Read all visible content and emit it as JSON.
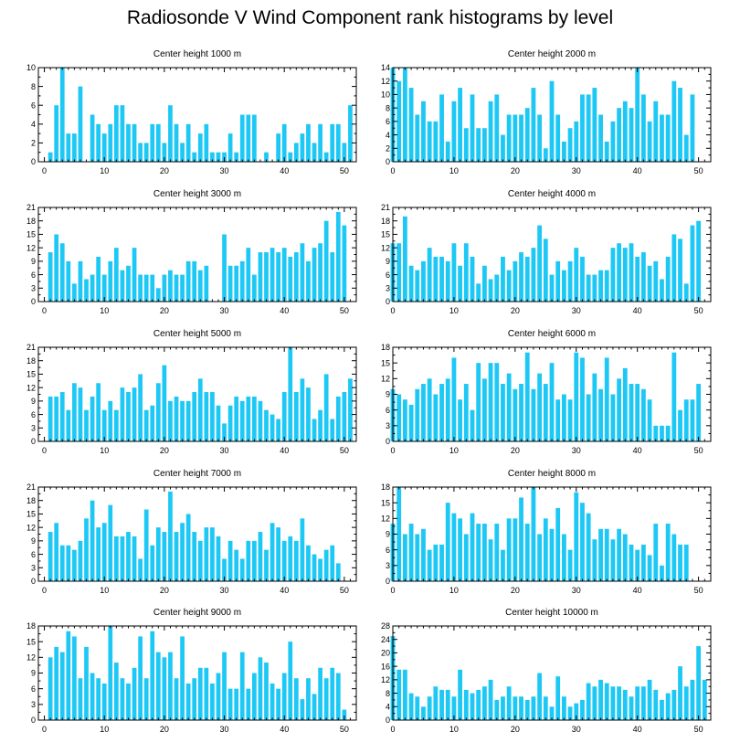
{
  "title": "Radiosonde V Wind Component rank histograms by level",
  "chart_data": [
    {
      "type": "bar",
      "title": "Center height 1000 m",
      "bar_color": "#1ec8f5",
      "x": [
        0,
        1,
        2,
        3,
        4,
        5,
        6,
        7,
        8,
        9,
        10,
        11,
        12,
        13,
        14,
        15,
        16,
        17,
        18,
        19,
        20,
        21,
        22,
        23,
        24,
        25,
        26,
        27,
        28,
        29,
        30,
        31,
        32,
        33,
        34,
        35,
        36,
        37,
        38,
        39,
        40,
        41,
        42,
        43,
        44,
        45,
        46,
        47,
        48,
        49,
        50,
        51
      ],
      "values": [
        0,
        1,
        6,
        10,
        3,
        3,
        8,
        0,
        5,
        4,
        3,
        4,
        6,
        6,
        4,
        4,
        2,
        2,
        4,
        4,
        2,
        6,
        4,
        2,
        4,
        1,
        3,
        4,
        1,
        1,
        1,
        3,
        1,
        5,
        5,
        5,
        0,
        1,
        0,
        3,
        4,
        1,
        2,
        3,
        4,
        2,
        4,
        1,
        4,
        4,
        2,
        6
      ],
      "xlim": [
        -1,
        52
      ],
      "ylim": [
        0,
        10
      ],
      "xticks": [
        0,
        10,
        20,
        30,
        40,
        50
      ],
      "yticks": [
        0,
        2,
        4,
        6,
        8,
        10
      ]
    },
    {
      "type": "bar",
      "title": "Center height 2000 m",
      "bar_color": "#1ec8f5",
      "x": [
        0,
        1,
        2,
        3,
        4,
        5,
        6,
        7,
        8,
        9,
        10,
        11,
        12,
        13,
        14,
        15,
        16,
        17,
        18,
        19,
        20,
        21,
        22,
        23,
        24,
        25,
        26,
        27,
        28,
        29,
        30,
        31,
        32,
        33,
        34,
        35,
        36,
        37,
        38,
        39,
        40,
        41,
        42,
        43,
        44,
        45,
        46,
        47,
        48,
        49,
        50,
        51
      ],
      "values": [
        14,
        12,
        14,
        11,
        7,
        9,
        6,
        6,
        10,
        3,
        9,
        11,
        5,
        10,
        5,
        5,
        9,
        10,
        4,
        7,
        7,
        7,
        8,
        11,
        7,
        2,
        12,
        7,
        3,
        5,
        6,
        10,
        10,
        11,
        7,
        3,
        6,
        8,
        9,
        8,
        14,
        10,
        6,
        9,
        7,
        7,
        12,
        11,
        4,
        10,
        0,
        0
      ],
      "xlim": [
        0,
        52
      ],
      "ylim": [
        0,
        14
      ],
      "xticks": [
        0,
        10,
        20,
        30,
        40,
        50
      ],
      "yticks": [
        0,
        2,
        4,
        6,
        8,
        10,
        12,
        14
      ]
    },
    {
      "type": "bar",
      "title": "Center height 3000 m",
      "bar_color": "#1ec8f5",
      "x": [
        0,
        1,
        2,
        3,
        4,
        5,
        6,
        7,
        8,
        9,
        10,
        11,
        12,
        13,
        14,
        15,
        16,
        17,
        18,
        19,
        20,
        21,
        22,
        23,
        24,
        25,
        26,
        27,
        28,
        29,
        30,
        31,
        32,
        33,
        34,
        35,
        36,
        37,
        38,
        39,
        40,
        41,
        42,
        43,
        44,
        45,
        46,
        47,
        48,
        49,
        50,
        51
      ],
      "values": [
        0,
        11,
        15,
        13,
        9,
        4,
        9,
        5,
        6,
        10,
        6,
        9,
        12,
        7,
        8,
        12,
        6,
        6,
        6,
        3,
        6,
        7,
        6,
        6,
        9,
        9,
        7,
        8,
        0,
        0,
        15,
        8,
        8,
        9,
        12,
        6,
        11,
        11,
        12,
        11,
        12,
        10,
        11,
        13,
        9,
        12,
        13,
        18,
        11,
        20,
        17,
        0
      ],
      "xlim": [
        -1,
        52
      ],
      "ylim": [
        0,
        21
      ],
      "xticks": [
        0,
        10,
        20,
        30,
        40,
        50
      ],
      "yticks": [
        0,
        3,
        6,
        9,
        12,
        15,
        18,
        21
      ]
    },
    {
      "type": "bar",
      "title": "Center height 4000 m",
      "bar_color": "#1ec8f5",
      "x": [
        0,
        1,
        2,
        3,
        4,
        5,
        6,
        7,
        8,
        9,
        10,
        11,
        12,
        13,
        14,
        15,
        16,
        17,
        18,
        19,
        20,
        21,
        22,
        23,
        24,
        25,
        26,
        27,
        28,
        29,
        30,
        31,
        32,
        33,
        34,
        35,
        36,
        37,
        38,
        39,
        40,
        41,
        42,
        43,
        44,
        45,
        46,
        47,
        48,
        49,
        50,
        51
      ],
      "values": [
        13,
        13,
        19,
        8,
        7,
        9,
        12,
        10,
        10,
        9,
        13,
        8,
        13,
        10,
        4,
        8,
        5,
        6,
        10,
        7,
        9,
        11,
        10,
        12,
        17,
        14,
        6,
        9,
        7,
        9,
        12,
        10,
        6,
        6,
        7,
        7,
        12,
        13,
        12,
        13,
        10,
        11,
        8,
        9,
        5,
        10,
        15,
        14,
        4,
        17,
        18,
        0
      ],
      "xlim": [
        0,
        52
      ],
      "ylim": [
        0,
        21
      ],
      "xticks": [
        0,
        10,
        20,
        30,
        40,
        50
      ],
      "yticks": [
        0,
        3,
        6,
        9,
        12,
        15,
        18,
        21
      ]
    },
    {
      "type": "bar",
      "title": "Center height 5000 m",
      "bar_color": "#1ec8f5",
      "x": [
        0,
        1,
        2,
        3,
        4,
        5,
        6,
        7,
        8,
        9,
        10,
        11,
        12,
        13,
        14,
        15,
        16,
        17,
        18,
        19,
        20,
        21,
        22,
        23,
        24,
        25,
        26,
        27,
        28,
        29,
        30,
        31,
        32,
        33,
        34,
        35,
        36,
        37,
        38,
        39,
        40,
        41,
        42,
        43,
        44,
        45,
        46,
        47,
        48,
        49,
        50,
        51
      ],
      "values": [
        0,
        10,
        10,
        11,
        7,
        13,
        12,
        7,
        10,
        13,
        7,
        9,
        7,
        12,
        11,
        12,
        15,
        7,
        8,
        13,
        17,
        9,
        10,
        9,
        9,
        11,
        14,
        11,
        11,
        8,
        4,
        8,
        10,
        9,
        10,
        10,
        9,
        7,
        6,
        5,
        11,
        21,
        11,
        14,
        12,
        5,
        7,
        15,
        5,
        10,
        11,
        14
      ],
      "xlim": [
        -1,
        52
      ],
      "ylim": [
        0,
        21
      ],
      "xticks": [
        0,
        10,
        20,
        30,
        40,
        50
      ],
      "yticks": [
        0,
        3,
        6,
        9,
        12,
        15,
        18,
        21
      ]
    },
    {
      "type": "bar",
      "title": "Center height 6000 m",
      "bar_color": "#1ec8f5",
      "x": [
        0,
        1,
        2,
        3,
        4,
        5,
        6,
        7,
        8,
        9,
        10,
        11,
        12,
        13,
        14,
        15,
        16,
        17,
        18,
        19,
        20,
        21,
        22,
        23,
        24,
        25,
        26,
        27,
        28,
        29,
        30,
        31,
        32,
        33,
        34,
        35,
        36,
        37,
        38,
        39,
        40,
        41,
        42,
        43,
        44,
        45,
        46,
        47,
        48,
        49,
        50,
        51
      ],
      "values": [
        10,
        9,
        8,
        7,
        10,
        11,
        12,
        9,
        11,
        12,
        16,
        8,
        11,
        6,
        15,
        12,
        15,
        15,
        11,
        13,
        10,
        11,
        17,
        10,
        13,
        11,
        15,
        8,
        9,
        8,
        17,
        16,
        9,
        13,
        10,
        16,
        9,
        12,
        14,
        11,
        11,
        10,
        8,
        3,
        3,
        3,
        17,
        6,
        8,
        8,
        11,
        0
      ],
      "xlim": [
        0,
        52
      ],
      "ylim": [
        0,
        18
      ],
      "xticks": [
        0,
        10,
        20,
        30,
        40,
        50
      ],
      "yticks": [
        0,
        3,
        6,
        9,
        12,
        15,
        18
      ]
    },
    {
      "type": "bar",
      "title": "Center height 7000 m",
      "bar_color": "#1ec8f5",
      "x": [
        0,
        1,
        2,
        3,
        4,
        5,
        6,
        7,
        8,
        9,
        10,
        11,
        12,
        13,
        14,
        15,
        16,
        17,
        18,
        19,
        20,
        21,
        22,
        23,
        24,
        25,
        26,
        27,
        28,
        29,
        30,
        31,
        32,
        33,
        34,
        35,
        36,
        37,
        38,
        39,
        40,
        41,
        42,
        43,
        44,
        45,
        46,
        47,
        48,
        49,
        50,
        51
      ],
      "values": [
        0,
        11,
        13,
        8,
        8,
        7,
        9,
        14,
        18,
        12,
        13,
        17,
        10,
        10,
        11,
        10,
        5,
        16,
        8,
        12,
        11,
        20,
        11,
        13,
        15,
        11,
        9,
        12,
        12,
        10,
        5,
        9,
        7,
        5,
        9,
        9,
        11,
        7,
        13,
        12,
        9,
        10,
        9,
        14,
        8,
        6,
        5,
        7,
        8,
        4,
        0,
        0
      ],
      "xlim": [
        -1,
        52
      ],
      "ylim": [
        0,
        21
      ],
      "xticks": [
        0,
        10,
        20,
        30,
        40,
        50
      ],
      "yticks": [
        0,
        3,
        6,
        9,
        12,
        15,
        18,
        21
      ]
    },
    {
      "type": "bar",
      "title": "Center height 8000 m",
      "bar_color": "#1ec8f5",
      "x": [
        0,
        1,
        2,
        3,
        4,
        5,
        6,
        7,
        8,
        9,
        10,
        11,
        12,
        13,
        14,
        15,
        16,
        17,
        18,
        19,
        20,
        21,
        22,
        23,
        24,
        25,
        26,
        27,
        28,
        29,
        30,
        31,
        32,
        33,
        34,
        35,
        36,
        37,
        38,
        39,
        40,
        41,
        42,
        43,
        44,
        45,
        46,
        47,
        48,
        49,
        50,
        51
      ],
      "values": [
        11,
        18,
        9,
        11,
        9,
        10,
        6,
        7,
        7,
        15,
        13,
        12,
        9,
        13,
        11,
        11,
        8,
        11,
        6,
        12,
        12,
        16,
        11,
        18,
        9,
        12,
        10,
        14,
        9,
        6,
        17,
        15,
        13,
        8,
        10,
        10,
        8,
        10,
        9,
        7,
        6,
        7,
        5,
        11,
        3,
        11,
        9,
        7,
        7,
        0,
        0,
        0
      ],
      "xlim": [
        0,
        52
      ],
      "ylim": [
        0,
        18
      ],
      "xticks": [
        0,
        10,
        20,
        30,
        40,
        50
      ],
      "yticks": [
        0,
        3,
        6,
        9,
        12,
        15,
        18
      ]
    },
    {
      "type": "bar",
      "title": "Center height 9000 m",
      "bar_color": "#1ec8f5",
      "x": [
        0,
        1,
        2,
        3,
        4,
        5,
        6,
        7,
        8,
        9,
        10,
        11,
        12,
        13,
        14,
        15,
        16,
        17,
        18,
        19,
        20,
        21,
        22,
        23,
        24,
        25,
        26,
        27,
        28,
        29,
        30,
        31,
        32,
        33,
        34,
        35,
        36,
        37,
        38,
        39,
        40,
        41,
        42,
        43,
        44,
        45,
        46,
        47,
        48,
        49,
        50,
        51
      ],
      "values": [
        0,
        12,
        14,
        13,
        17,
        16,
        8,
        14,
        9,
        8,
        7,
        18,
        11,
        8,
        7,
        10,
        16,
        8,
        17,
        13,
        12,
        13,
        8,
        16,
        7,
        8,
        10,
        10,
        7,
        9,
        13,
        6,
        6,
        13,
        6,
        9,
        12,
        11,
        7,
        6,
        9,
        15,
        8,
        4,
        8,
        5,
        10,
        8,
        10,
        9,
        2,
        0
      ],
      "xlim": [
        -1,
        52
      ],
      "ylim": [
        0,
        18
      ],
      "xticks": [
        0,
        10,
        20,
        30,
        40,
        50
      ],
      "yticks": [
        0,
        3,
        6,
        9,
        12,
        15,
        18
      ]
    },
    {
      "type": "bar",
      "title": "Center height 10000 m",
      "bar_color": "#1ec8f5",
      "x": [
        0,
        1,
        2,
        3,
        4,
        5,
        6,
        7,
        8,
        9,
        10,
        11,
        12,
        13,
        14,
        15,
        16,
        17,
        18,
        19,
        20,
        21,
        22,
        23,
        24,
        25,
        26,
        27,
        28,
        29,
        30,
        31,
        32,
        33,
        34,
        35,
        36,
        37,
        38,
        39,
        40,
        41,
        42,
        43,
        44,
        45,
        46,
        47,
        48,
        49,
        50,
        51
      ],
      "values": [
        25,
        15,
        15,
        8,
        7,
        4,
        7,
        10,
        9,
        9,
        7,
        15,
        9,
        8,
        9,
        10,
        12,
        6,
        7,
        10,
        7,
        7,
        6,
        7,
        14,
        7,
        4,
        13,
        7,
        4,
        5,
        6,
        11,
        10,
        12,
        11,
        10,
        10,
        9,
        7,
        10,
        10,
        12,
        9,
        6,
        8,
        9,
        16,
        10,
        12,
        22,
        12
      ],
      "xlim": [
        0,
        52
      ],
      "ylim": [
        0,
        28
      ],
      "xticks": [
        0,
        10,
        20,
        30,
        40,
        50
      ],
      "yticks": [
        0,
        4,
        8,
        12,
        16,
        20,
        24,
        28
      ]
    }
  ]
}
